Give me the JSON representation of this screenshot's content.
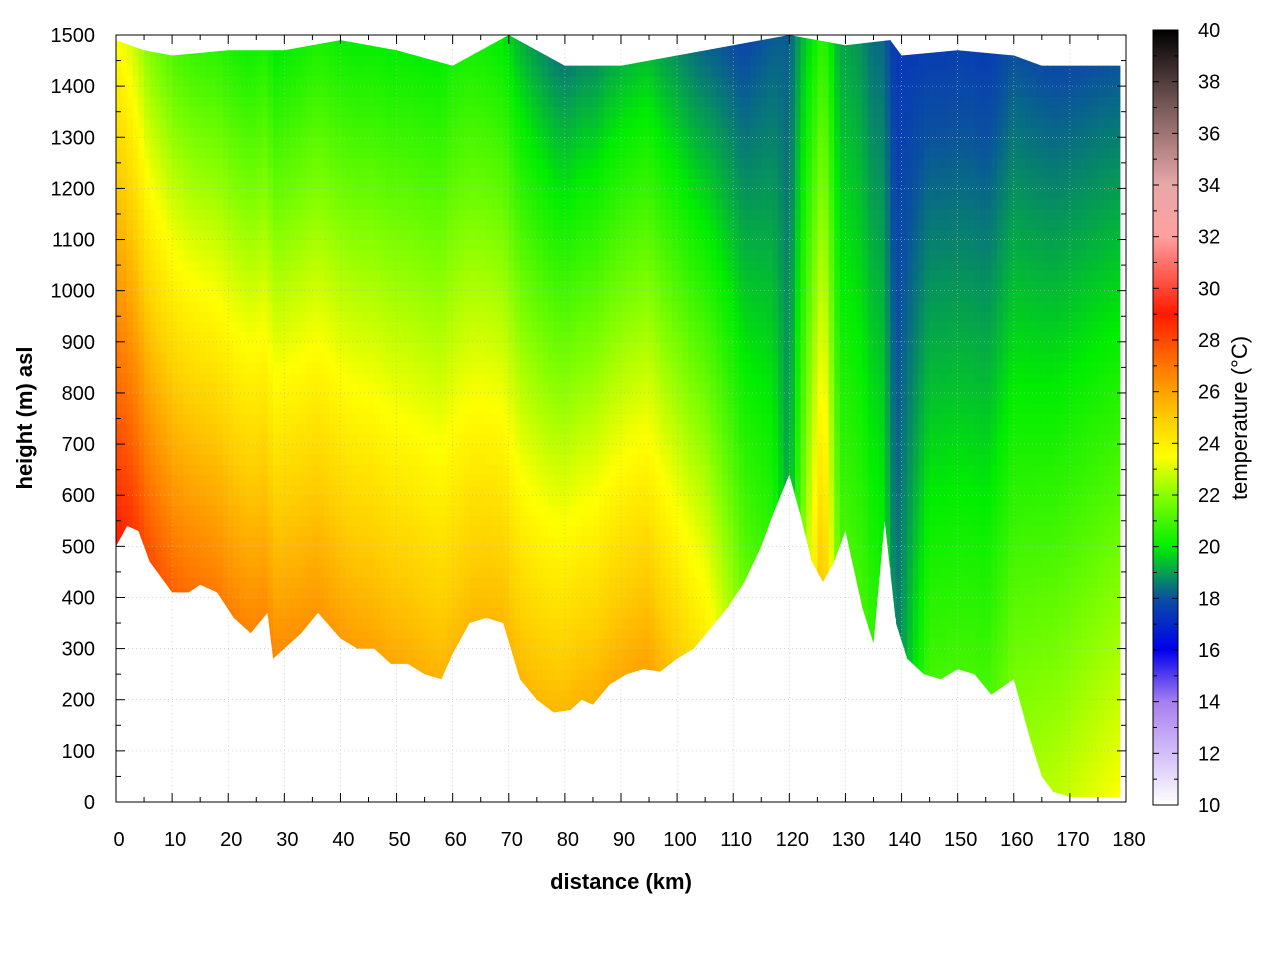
{
  "chart_data": {
    "type": "heatmap",
    "title": "",
    "xlabel": "distance (km)",
    "ylabel": "height (m) asl",
    "colorbar_label": "temperature (°C)",
    "xlim": [
      0,
      180
    ],
    "ylim": [
      0,
      1500
    ],
    "zlim": [
      10,
      40
    ],
    "x_ticks": [
      "0",
      "10",
      "20",
      "30",
      "40",
      "50",
      "60",
      "70",
      "80",
      "90",
      "100",
      "110",
      "120",
      "130",
      "140",
      "150",
      "160",
      "170",
      "180"
    ],
    "y_ticks": [
      "0",
      "100",
      "200",
      "300",
      "400",
      "500",
      "600",
      "700",
      "800",
      "900",
      "1000",
      "1100",
      "1200",
      "1300",
      "1400",
      "1500"
    ],
    "colorbar_ticks": [
      "10",
      "12",
      "14",
      "16",
      "18",
      "20",
      "22",
      "24",
      "26",
      "28",
      "30",
      "32",
      "34",
      "36",
      "38",
      "40"
    ],
    "grid": true,
    "colormap": [
      {
        "t": 10,
        "color": "#ffffff"
      },
      {
        "t": 14,
        "color": "#a77ef0"
      },
      {
        "t": 16,
        "color": "#0000ee"
      },
      {
        "t": 18,
        "color": "#0a50a0"
      },
      {
        "t": 20,
        "color": "#00ee00"
      },
      {
        "t": 22,
        "color": "#88ff00"
      },
      {
        "t": 23.5,
        "color": "#ffff00"
      },
      {
        "t": 25,
        "color": "#ffcc00"
      },
      {
        "t": 27,
        "color": "#ff7700"
      },
      {
        "t": 29,
        "color": "#ff1a00"
      },
      {
        "t": 32,
        "color": "#ff9fa0"
      },
      {
        "t": 34,
        "color": "#e8a8a8"
      },
      {
        "t": 37,
        "color": "#7a5a5a"
      },
      {
        "t": 40,
        "color": "#000000"
      }
    ],
    "terrain": {
      "distance_km": [
        0,
        2,
        4,
        6,
        8,
        10,
        13,
        15,
        18,
        21,
        24,
        27,
        28,
        31,
        33,
        36,
        40,
        43,
        46,
        49,
        52,
        55,
        58,
        60,
        63,
        66,
        69,
        72,
        75,
        78,
        81,
        83,
        85,
        88,
        91,
        94,
        97,
        100,
        103,
        106,
        109,
        112,
        115,
        117,
        120,
        122,
        124,
        126,
        128,
        130,
        133,
        135,
        137,
        139,
        141,
        144,
        147,
        150,
        153,
        156,
        160,
        163,
        165,
        167,
        170,
        175,
        179
      ],
      "height_m": [
        500,
        540,
        530,
        470,
        440,
        410,
        410,
        425,
        410,
        360,
        330,
        370,
        280,
        310,
        330,
        370,
        320,
        300,
        300,
        270,
        270,
        250,
        240,
        290,
        350,
        360,
        350,
        240,
        200,
        175,
        180,
        200,
        190,
        230,
        250,
        260,
        255,
        280,
        300,
        340,
        380,
        430,
        500,
        560,
        640,
        560,
        470,
        430,
        470,
        530,
        380,
        310,
        550,
        350,
        280,
        250,
        240,
        260,
        250,
        210,
        240,
        120,
        50,
        20,
        10,
        10,
        10
      ]
    },
    "top_profile": {
      "distance_km": [
        0,
        5,
        10,
        20,
        30,
        40,
        50,
        60,
        70,
        80,
        90,
        100,
        110,
        120,
        130,
        138,
        140,
        150,
        160,
        165,
        179
      ],
      "height_m": [
        1490,
        1470,
        1460,
        1470,
        1470,
        1490,
        1470,
        1440,
        1500,
        1440,
        1440,
        1460,
        1480,
        1500,
        1480,
        1490,
        1460,
        1470,
        1460,
        1440,
        1440
      ]
    },
    "temperature_profiles": [
      {
        "distance_km": 0,
        "t_at_ground": 29,
        "lapse_c_per_100m": 0.55
      },
      {
        "distance_km": 5,
        "t_at_ground": 28,
        "lapse_c_per_100m": 0.6
      },
      {
        "distance_km": 15,
        "t_at_ground": 27,
        "lapse_c_per_100m": 0.6
      },
      {
        "distance_km": 30,
        "t_at_ground": 26.5,
        "lapse_c_per_100m": 0.55
      },
      {
        "distance_km": 45,
        "t_at_ground": 26,
        "lapse_c_per_100m": 0.5
      },
      {
        "distance_km": 60,
        "t_at_ground": 25.5,
        "lapse_c_per_100m": 0.45
      },
      {
        "distance_km": 72,
        "t_at_ground": 25.5,
        "lapse_c_per_100m": 0.5
      },
      {
        "distance_km": 80,
        "t_at_ground": 25.5,
        "lapse_c_per_100m": 0.55
      },
      {
        "distance_km": 95,
        "t_at_ground": 26,
        "lapse_c_per_100m": 0.55
      },
      {
        "distance_km": 105,
        "t_at_ground": 24,
        "lapse_c_per_100m": 0.5
      },
      {
        "distance_km": 112,
        "t_at_ground": 21.5,
        "lapse_c_per_100m": 0.35
      },
      {
        "distance_km": 117,
        "t_at_ground": 20.5,
        "lapse_c_per_100m": 0.25
      },
      {
        "distance_km": 120,
        "t_at_ground": 19,
        "lapse_c_per_100m": 0.1
      },
      {
        "distance_km": 124,
        "t_at_ground": 23.5,
        "lapse_c_per_100m": 0.35
      },
      {
        "distance_km": 126,
        "t_at_ground": 25.5,
        "lapse_c_per_100m": 0.45
      },
      {
        "distance_km": 129,
        "t_at_ground": 21,
        "lapse_c_per_100m": 0.2
      },
      {
        "distance_km": 133,
        "t_at_ground": 21,
        "lapse_c_per_100m": 0.2
      },
      {
        "distance_km": 136,
        "t_at_ground": 20.5,
        "lapse_c_per_100m": 0.2
      },
      {
        "distance_km": 139,
        "t_at_ground": 18.5,
        "lapse_c_per_100m": 0.1
      },
      {
        "distance_km": 145,
        "t_at_ground": 21,
        "lapse_c_per_100m": 0.28
      },
      {
        "distance_km": 155,
        "t_at_ground": 21,
        "lapse_c_per_100m": 0.28
      },
      {
        "distance_km": 165,
        "t_at_ground": 22.5,
        "lapse_c_per_100m": 0.33
      },
      {
        "distance_km": 179,
        "t_at_ground": 23.5,
        "lapse_c_per_100m": 0.38
      }
    ]
  }
}
